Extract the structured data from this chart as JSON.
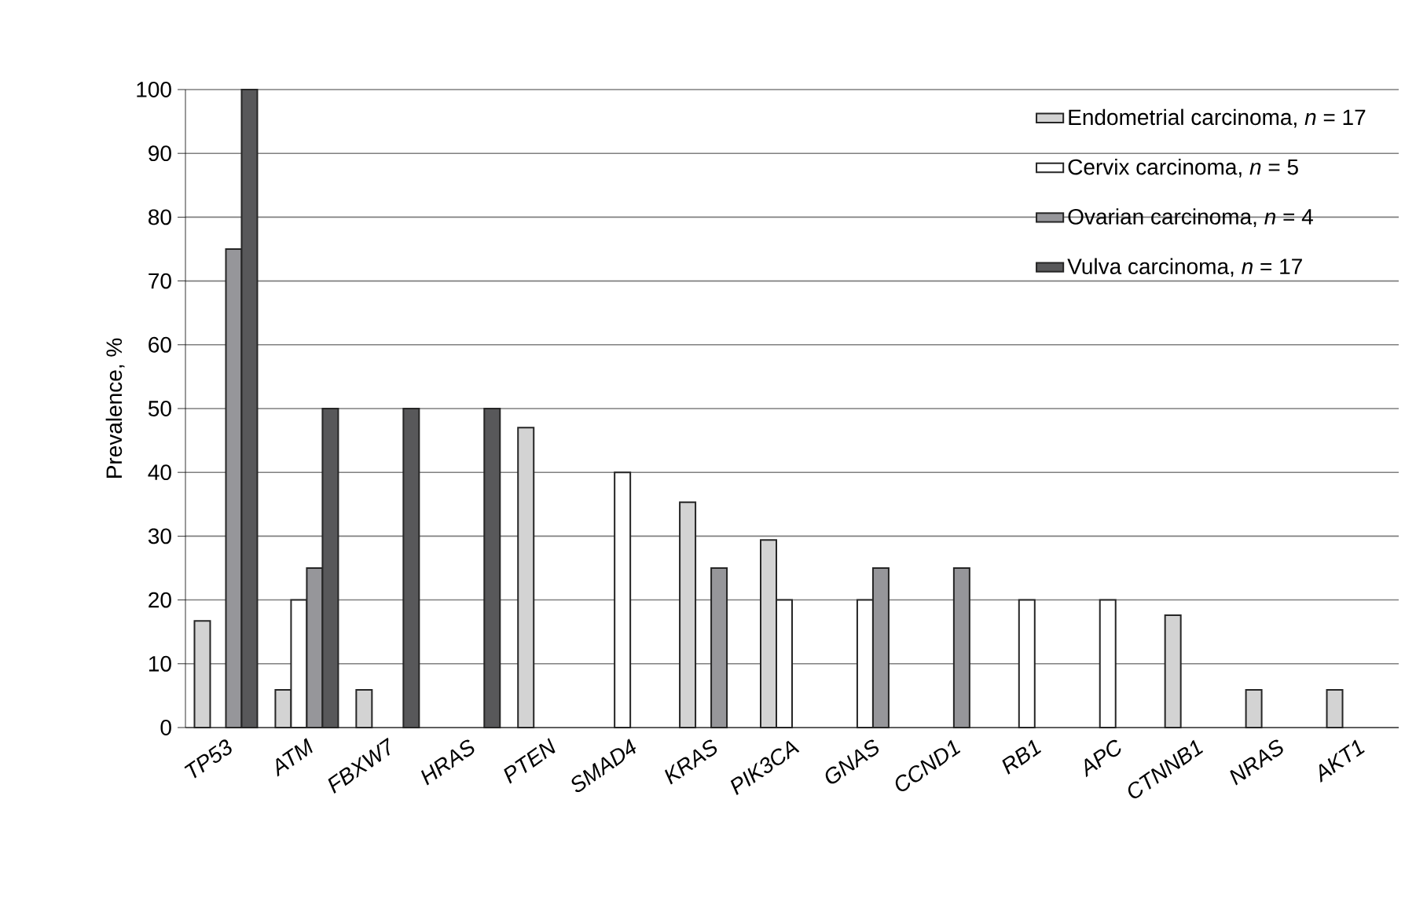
{
  "chart_data": {
    "type": "bar",
    "ylabel": "Prevalence, %",
    "categories": [
      "TP53",
      "ATM",
      "FBXW7",
      "HRAS",
      "PTEN",
      "SMAD4",
      "KRAS",
      "PIK3CA",
      "GNAS",
      "CCND1",
      "RB1",
      "APC",
      "CTNNB1",
      "NRAS",
      "AKT1"
    ],
    "series": [
      {
        "name": "Endometrial carcinoma, *n* = 17",
        "color": "#d3d3d3",
        "values": [
          16.7,
          5.9,
          5.9,
          null,
          47,
          null,
          35.3,
          29.4,
          null,
          null,
          null,
          null,
          17.6,
          5.9,
          5.9
        ]
      },
      {
        "name": "Cervix carcinoma, *n* = 5",
        "color": "#ffffff",
        "values": [
          null,
          20,
          null,
          null,
          null,
          40,
          null,
          20,
          20,
          null,
          20,
          20,
          null,
          null,
          null
        ]
      },
      {
        "name": "Ovarian carcinoma, *n* = 4",
        "color": "#96969a",
        "values": [
          75,
          25,
          null,
          null,
          null,
          null,
          25,
          null,
          25,
          25,
          null,
          null,
          null,
          null,
          null
        ]
      },
      {
        "name": "Vulva carcinoma, *n* = 17",
        "color": "#58585a",
        "values": [
          100,
          50,
          50,
          50,
          null,
          null,
          null,
          null,
          null,
          null,
          null,
          null,
          null,
          null,
          null
        ]
      }
    ],
    "ylim": [
      0,
      100
    ],
    "yticks": [
      0,
      10,
      20,
      30,
      40,
      50,
      60,
      70,
      80,
      90,
      100
    ],
    "grid": "y",
    "legend": "top right"
  }
}
